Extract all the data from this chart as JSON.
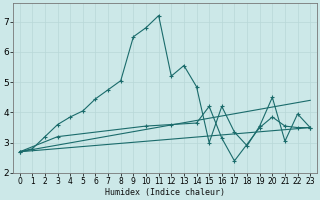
{
  "xlabel": "Humidex (Indice chaleur)",
  "bg_color": "#cce8e8",
  "line_color": "#1a6b6b",
  "grid_color": "#b8d8d8",
  "xlim": [
    -0.5,
    23.5
  ],
  "ylim": [
    2.0,
    7.6
  ],
  "yticks": [
    2,
    3,
    4,
    5,
    6,
    7
  ],
  "xticks": [
    0,
    1,
    2,
    3,
    4,
    5,
    6,
    7,
    8,
    9,
    10,
    11,
    12,
    13,
    14,
    15,
    16,
    17,
    18,
    19,
    20,
    21,
    22,
    23
  ],
  "lines": [
    {
      "x": [
        0,
        1,
        2,
        3,
        4,
        5,
        6,
        7,
        8,
        9,
        10,
        11,
        12,
        13,
        14,
        15,
        16,
        17,
        18,
        19,
        20,
        21,
        22,
        23
      ],
      "y": [
        2.7,
        2.8,
        3.2,
        3.6,
        3.85,
        4.05,
        4.45,
        4.75,
        5.05,
        6.5,
        6.8,
        7.2,
        5.2,
        5.55,
        4.85,
        3.0,
        4.2,
        3.35,
        2.9,
        3.55,
        4.5,
        3.05,
        3.95,
        3.5
      ],
      "has_marker": true
    },
    {
      "x": [
        0,
        23
      ],
      "y": [
        2.7,
        4.4
      ],
      "has_marker": false
    },
    {
      "x": [
        0,
        23
      ],
      "y": [
        2.7,
        3.5
      ],
      "has_marker": false
    },
    {
      "x": [
        0,
        3,
        10,
        12,
        14,
        15,
        16,
        17,
        19,
        20,
        21,
        22,
        23
      ],
      "y": [
        2.7,
        3.2,
        3.55,
        3.6,
        3.65,
        4.2,
        3.15,
        2.4,
        3.5,
        3.85,
        3.55,
        3.5,
        3.5
      ],
      "has_marker": true
    }
  ]
}
